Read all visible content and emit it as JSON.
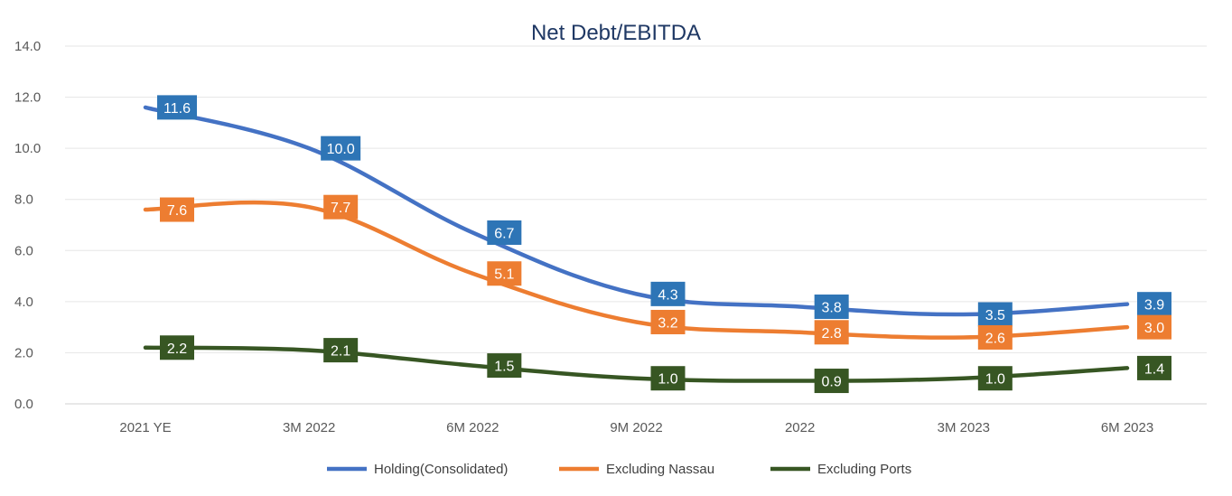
{
  "chart_data": {
    "type": "line",
    "title": "Net Debt/EBITDA",
    "xlabel": "",
    "ylabel": "",
    "categories": [
      "2021 YE",
      "3M 2022",
      "6M 2022",
      "9M 2022",
      "2022",
      "3M 2023",
      "6M 2023"
    ],
    "ylim": [
      0,
      14
    ],
    "yticks": [
      "0.0",
      "2.0",
      "4.0",
      "6.0",
      "8.0",
      "10.0",
      "12.0",
      "14.0"
    ],
    "grid": true,
    "legend_position": "bottom",
    "series": [
      {
        "name": "Holding(Consolidated)",
        "color": "#4472c4",
        "label_bg": "#2e75b6",
        "values": [
          11.6,
          10.0,
          6.7,
          4.3,
          3.8,
          3.5,
          3.9
        ],
        "labels": [
          "11.6",
          "10.0",
          "6.7",
          "4.3",
          "3.8",
          "3.5",
          "3.9"
        ]
      },
      {
        "name": "Excluding Nassau",
        "color": "#ed7d31",
        "label_bg": "#ed7d31",
        "values": [
          7.6,
          7.7,
          5.1,
          3.2,
          2.8,
          2.6,
          3.0
        ],
        "labels": [
          "7.6",
          "7.7",
          "5.1",
          "3.2",
          "2.8",
          "2.6",
          "3.0"
        ]
      },
      {
        "name": "Excluding Ports",
        "color": "#375623",
        "label_bg": "#375623",
        "values": [
          2.2,
          2.1,
          1.5,
          1.0,
          0.9,
          1.0,
          1.4
        ],
        "labels": [
          "2.2",
          "2.1",
          "1.5",
          "1.0",
          "0.9",
          "1.0",
          "1.4"
        ]
      }
    ]
  }
}
